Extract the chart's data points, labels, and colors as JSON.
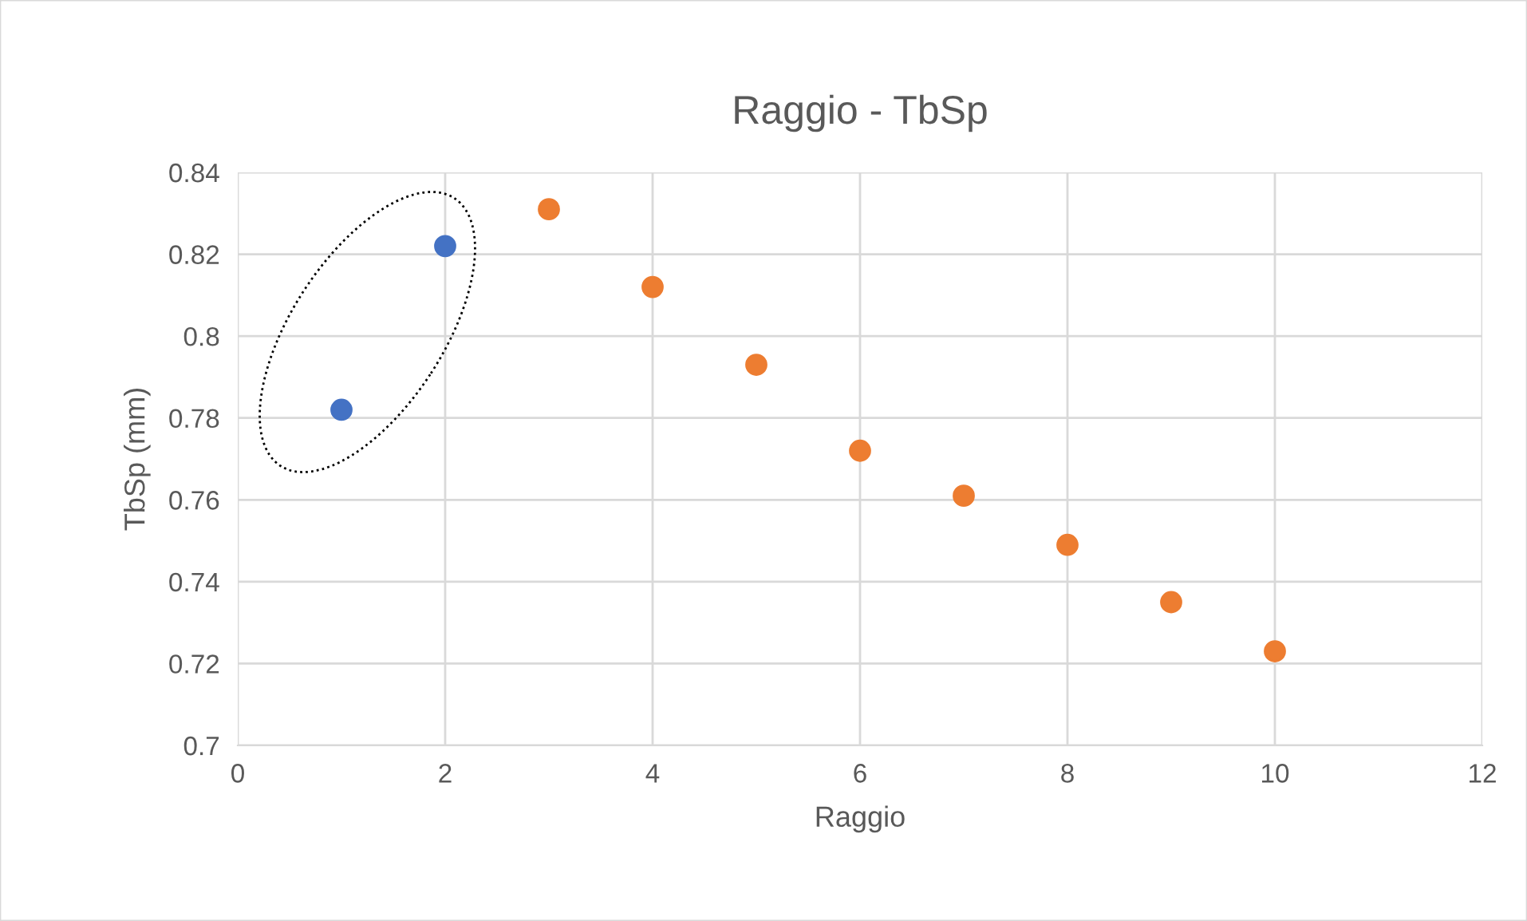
{
  "chart_data": {
    "type": "scatter",
    "title": "Raggio - TbSp",
    "xlabel": "Raggio",
    "ylabel": "TbSp (mm)",
    "series": [
      {
        "color": "#4472c4",
        "x": [
          1,
          2
        ],
        "values": [
          0.782,
          0.822
        ]
      },
      {
        "color": "#ed7d31",
        "x": [
          3,
          4,
          5,
          6,
          7,
          8,
          9,
          10
        ],
        "values": [
          0.831,
          0.812,
          0.793,
          0.772,
          0.761,
          0.749,
          0.735,
          0.723
        ]
      }
    ],
    "xlim": [
      0,
      12
    ],
    "xticks": [
      0,
      2,
      4,
      6,
      8,
      10,
      12
    ],
    "ylim": [
      0.7,
      0.84
    ],
    "yticks": [
      {
        "value": 0.7,
        "label": "0.7"
      },
      {
        "value": 0.72,
        "label": "0.72"
      },
      {
        "value": 0.74,
        "label": "0.74"
      },
      {
        "value": 0.76,
        "label": "0.76"
      },
      {
        "value": 0.78,
        "label": "0.78"
      },
      {
        "value": 0.8,
        "label": "0.8"
      },
      {
        "value": 0.82,
        "label": "0.82"
      },
      {
        "value": 0.84,
        "label": "0.84"
      }
    ],
    "grid": true,
    "legend": false,
    "marker": "circle"
  }
}
